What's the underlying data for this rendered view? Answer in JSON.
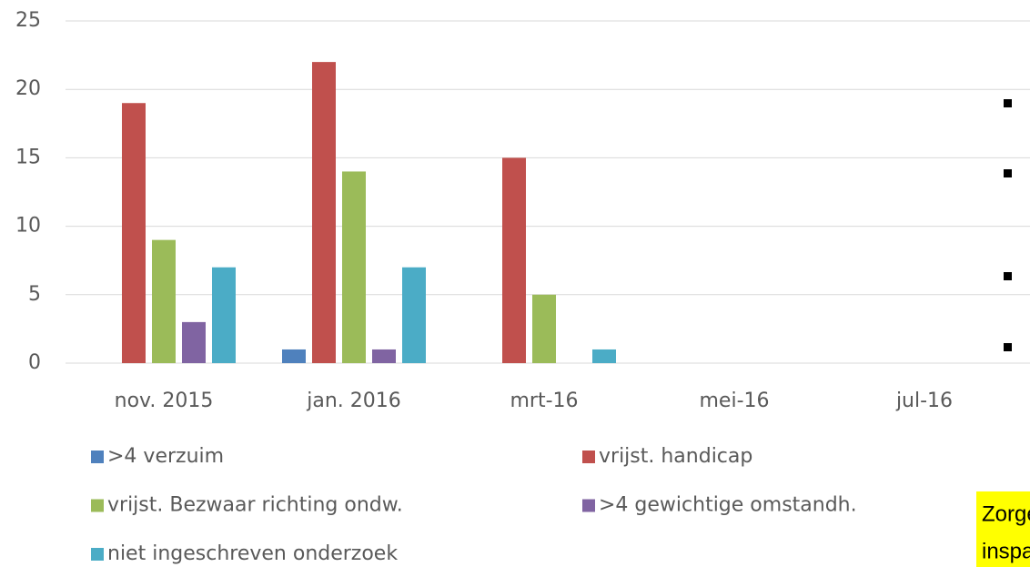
{
  "chart_data": {
    "type": "bar",
    "categories": [
      "nov. 2015",
      "jan. 2016",
      "mrt-16",
      "mei-16",
      "jul-16"
    ],
    "series": [
      {
        "name": ">4 verzuim",
        "color": "#4f81bd",
        "values": [
          null,
          1,
          null,
          null,
          null
        ]
      },
      {
        "name": "vrijst. handicap",
        "color": "#c0504d",
        "values": [
          19,
          22,
          15,
          null,
          null
        ]
      },
      {
        "name": "vrijst. Bezwaar richting ondw.",
        "color": "#9bbb59",
        "values": [
          9,
          14,
          5,
          null,
          null
        ]
      },
      {
        "name": ">4 gewichtige omstandh.",
        "color": "#8064a2",
        "values": [
          3,
          1,
          null,
          null,
          null
        ]
      },
      {
        "name": "niet ingeschreven onderzoek",
        "color": "#4bacc6",
        "values": [
          7,
          7,
          1,
          null,
          null
        ]
      }
    ],
    "ylim": [
      0,
      25
    ],
    "yticks": [
      0,
      5,
      10,
      15,
      20,
      25
    ],
    "grid": true,
    "annotations": [
      "Zorge",
      "inspar"
    ]
  }
}
